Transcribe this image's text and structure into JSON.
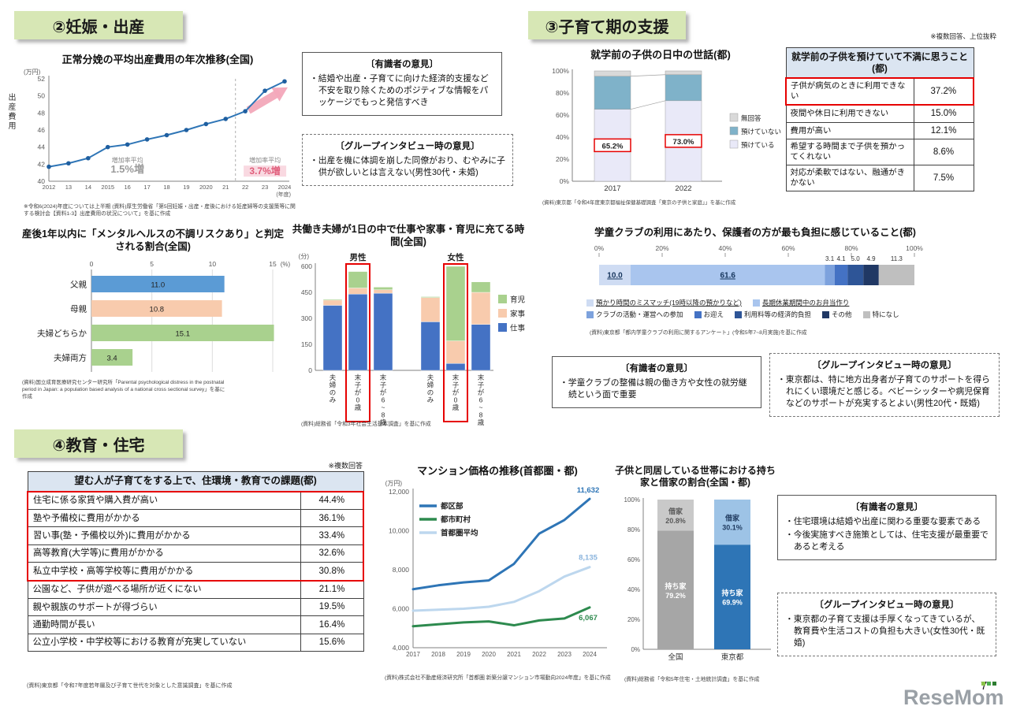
{
  "page": {
    "number": "7",
    "watermark": "ReseMom"
  },
  "headers": {
    "s2": "②妊娠・出産",
    "s3": "③子育て期の支援",
    "s4": "④教育・住宅"
  },
  "notes": {
    "s3_note": "※複数回答、上位抜粋",
    "issues_note": "※複数回答"
  },
  "boxes": {
    "expert1": {
      "title": "〔有識者の意見〕",
      "items": [
        "結婚や出産・子育てに向けた経済的支援など不安を取り除くためのポジティブな情報をパッケージでもっと発信すべき"
      ]
    },
    "group1": {
      "title": "〔グループインタビュー時の意見〕",
      "items": [
        "出産を機に体調を崩した同僚がおり、むやみに子供が欲しいとは言えない(男性30代・未婚)"
      ]
    },
    "expert2": {
      "title": "〔有識者の意見〕",
      "items": [
        "学童クラブの整備は親の働き方や女性の就労継続という面で重要"
      ]
    },
    "group2": {
      "title": "〔グループインタビュー時の意見〕",
      "items": [
        "東京都は、特に地方出身者が子育てのサポートを得られにくい環境だと感じる。ベビーシッターや病児保育などのサポートが充実するとよい(男性20代・既婚)"
      ]
    },
    "expert3": {
      "title": "〔有識者の意見〕",
      "items": [
        "住宅環境は結婚や出産に関わる重要な要素である",
        "今後実施すべき施策としては、住宅支援が最重要であると考える"
      ]
    },
    "group3": {
      "title": "〔グループインタビュー時の意見〕",
      "items": [
        "東京都の子育て支援は手厚くなってきているが、教育費や生活コストの負担も大きい(女性30代・既婚)"
      ]
    }
  },
  "tables": {
    "complaints": {
      "title": "就学前の子供を預けていて不満に思うこと(都)",
      "rows": [
        {
          "label": "子供が病気のときに利用できない",
          "value": "37.2%",
          "highlight": true
        },
        {
          "label": "夜間や休日に利用できない",
          "value": "15.0%"
        },
        {
          "label": "費用が高い",
          "value": "12.1%"
        },
        {
          "label": "希望する時間まで子供を預かってくれない",
          "value": "8.6%"
        },
        {
          "label": "対応が柔軟ではない、融通がきかない",
          "value": "7.5%"
        }
      ]
    },
    "issues": {
      "title": "望む人が子育てをする上で、住環境・教育での課題(都)",
      "rows": [
        {
          "label": "住宅に係る家賃や購入費が高い",
          "value": "44.4%",
          "highlight": true
        },
        {
          "label": "塾や予備校に費用がかかる",
          "value": "36.1%",
          "highlight": true
        },
        {
          "label": "習い事(塾・予備校以外)に費用がかかる",
          "value": "33.4%",
          "highlight": true
        },
        {
          "label": "高等教育(大学等)に費用がかかる",
          "value": "32.6%",
          "highlight": true
        },
        {
          "label": "私立中学校・高等学校等に費用がかかる",
          "value": "30.8%",
          "highlight": true
        },
        {
          "label": "公園など、子供が遊べる場所が近くにない",
          "value": "21.1%"
        },
        {
          "label": "親や親族のサポートが得づらい",
          "value": "19.5%"
        },
        {
          "label": "通勤時間が長い",
          "value": "16.4%"
        },
        {
          "label": "公立小学校・中学校等における教育が充実していない",
          "value": "15.6%"
        }
      ],
      "footnote": "(資料)東京都「令和7年度若年層及び子育て世代を対象とした意識調査」を基に作成"
    }
  },
  "chart_data": [
    {
      "id": "birth_cost",
      "type": "line",
      "title": "正常分娩の平均出産費用の年次推移(全国)",
      "unit": "(万円)",
      "ylabel": "出産費用",
      "ylim": [
        40,
        52
      ],
      "yticks": [
        40,
        42,
        44,
        46,
        48,
        50,
        52
      ],
      "x_labels": [
        "2012",
        "13",
        "14",
        "2015",
        "16",
        "17",
        "18",
        "19",
        "2020",
        "21",
        "22",
        "23",
        "2024"
      ],
      "x_suffix": "(年度)",
      "values": [
        41.7,
        42.1,
        42.7,
        44.0,
        44.3,
        44.9,
        45.4,
        46.0,
        46.7,
        47.3,
        48.2,
        50.6,
        51.7
      ],
      "annotations": {
        "left_label": "増加率平均",
        "left_value": "1.5%増",
        "right_label": "増加率平均",
        "right_value": "3.7%増"
      },
      "line_color": "#2e75b6",
      "footnote": "※令和6(2024)年度については上半期 (資料)厚生労働省「第5回妊娠・出産・産後における妊産婦等の支援策等に関する検討会【資料1-3】出産費用の状況について」を基に作成"
    },
    {
      "id": "mental_health",
      "type": "bar",
      "title": "産後1年以内に「メンタルヘルスの不調リスクあり」と判定される割合(全国)",
      "unit": "(%)",
      "xlim": [
        0,
        15
      ],
      "xticks": [
        0,
        5,
        10,
        15
      ],
      "categories": [
        "父親",
        "母親",
        "夫婦どちらか",
        "夫婦両方"
      ],
      "values": [
        11.0,
        10.8,
        15.1,
        3.4
      ],
      "colors": [
        "#5b9bd5",
        "#f8cbad",
        "#a9d18e",
        "#a9d18e"
      ],
      "footnote": "(資料)国立成育医療研究センター研究所「Parental psychological distress in the postnatal period in Japan: a population based analysis of a national cross sectional survey」を基に作成"
    },
    {
      "id": "time_use",
      "type": "bar",
      "title": "共働き夫婦が1日の中で仕事や家事・育児に充てる時間(全国)",
      "unit": "(分)",
      "ylim": [
        0,
        600
      ],
      "yticks": [
        0,
        150,
        300,
        450,
        600
      ],
      "groups": [
        {
          "name": "男性",
          "categories": [
            "夫婦のみ",
            "末子が0歳",
            "末子が6~8歳"
          ],
          "series": {
            "仕事": [
              375,
              440,
              445
            ],
            "家事": [
              30,
              35,
              20
            ],
            "育児": [
              5,
              95,
              15
            ]
          }
        },
        {
          "name": "女性",
          "categories": [
            "夫婦のみ",
            "末子が0歳",
            "末子が6~8歳"
          ],
          "series": {
            "仕事": [
              280,
              40,
              265
            ],
            "家事": [
              140,
              130,
              185
            ],
            "育児": [
              5,
              430,
              60
            ]
          }
        }
      ],
      "legend": [
        "育児",
        "家事",
        "仕事"
      ],
      "colors": {
        "仕事": "#4472c4",
        "家事": "#f8cbad",
        "育児": "#a9d18e"
      },
      "highlight_category": "末子が0歳",
      "footnote": "(資料)総務省「令和3年社会生活基本調査」を基に作成"
    },
    {
      "id": "daycare",
      "type": "bar",
      "title": "就学前の子供の日中の世話(都)",
      "categories": [
        "2017",
        "2022"
      ],
      "series": [
        {
          "name": "預けている",
          "values": [
            65.2,
            73.0
          ],
          "color": "#e9e9f8"
        },
        {
          "name": "預けていない",
          "values": [
            30.0,
            23.6
          ],
          "color": "#7fb2c9"
        },
        {
          "name": "無回答",
          "values": [
            4.8,
            3.4
          ],
          "color": "#d9d9d9"
        }
      ],
      "highlight_labels": [
        "65.2%",
        "73.0%"
      ],
      "footnote": "(資料)東京都「令和4年度東京都福祉保健基礎調査「東京の子供と家庭」」を基に作成"
    },
    {
      "id": "gakudo_club",
      "type": "bar",
      "title": "学童クラブの利用にあたり、保護者の方が最も負担に感じていること(都)",
      "xticks": [
        "0%",
        "20%",
        "40%",
        "60%",
        "80%",
        "100%"
      ],
      "segments": [
        {
          "label": "預かり時間のミスマッチ(19時以降の預かりなど)",
          "value": 10.0,
          "color": "#cfdcf3",
          "underline": true
        },
        {
          "label": "長期休業期間中のお弁当作り",
          "value": 61.6,
          "color": "#a9c5ee",
          "underline": true
        },
        {
          "label": "クラブの活動・運営への参加",
          "value": 3.1,
          "color": "#7da2dd"
        },
        {
          "label": "お迎え",
          "value": 4.1,
          "color": "#4472c4"
        },
        {
          "label": "利用料等の経済的負担",
          "value": 5.0,
          "color": "#2e5597"
        },
        {
          "label": "その他",
          "value": 4.9,
          "color": "#203864"
        },
        {
          "label": "特になし",
          "value": 11.3,
          "color": "#bfbfbf"
        }
      ],
      "footnote": "(資料)東京都「都内学童クラブの利用に関するアンケート」(令和5年7~8月実施)を基に作成"
    },
    {
      "id": "mansion_price",
      "type": "line",
      "title": "マンション価格の推移(首都圏・都)",
      "unit": "(万円)",
      "ylim": [
        4000,
        12000
      ],
      "yticks": [
        4000,
        6000,
        8000,
        10000,
        12000
      ],
      "x_labels": [
        "2017",
        "2018",
        "2019",
        "2020",
        "2021",
        "2022",
        "2023",
        "2024"
      ],
      "series": [
        {
          "name": "都区部",
          "color": "#2e75b6",
          "values": [
            7000,
            7200,
            7350,
            7450,
            8300,
            9850,
            10550,
            11632
          ],
          "end_label": "11,632"
        },
        {
          "name": "都市町村",
          "color": "#2d8a4e",
          "values": [
            5100,
            5200,
            5300,
            5350,
            5150,
            5400,
            5500,
            6067
          ],
          "end_label": "6,067"
        },
        {
          "name": "首都圏平均",
          "color": "#bdd7ee",
          "values": [
            5900,
            5950,
            6000,
            6100,
            6350,
            6900,
            7650,
            8135
          ],
          "end_label": "8,135"
        }
      ],
      "footnote": "(資料)株式会社不動産経済研究所「首都圏 新築分譲マンション市場動向2024年度」を基に作成"
    },
    {
      "id": "home_ownership",
      "type": "bar",
      "title": "子供と同居している世帯における持ち家と借家の割合(全国・都)",
      "bars": [
        {
          "category": "全国",
          "segments": [
            {
              "name": "持ち家",
              "value": 79.2,
              "color": "#a6a6a6",
              "text": "#ffffff"
            },
            {
              "name": "借家",
              "value": 20.8,
              "color": "#c9c9c9",
              "text": "#595959"
            }
          ]
        },
        {
          "category": "東京都",
          "segments": [
            {
              "name": "持ち家",
              "value": 69.9,
              "color": "#2e75b6",
              "text": "#ffffff"
            },
            {
              "name": "借家",
              "value": 30.1,
              "color": "#9dc3e6",
              "text": "#1f3a5f"
            }
          ]
        }
      ],
      "footnote": "(資料)総務省「令和5年住宅・土地統計調査」を基に作成"
    }
  ]
}
